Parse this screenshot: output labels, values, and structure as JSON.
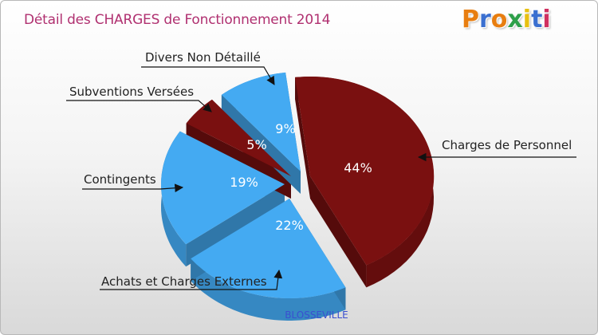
{
  "header": {
    "title": "Détail des CHARGES de Fonctionnement 2014",
    "logo_text": "Proxiti"
  },
  "colors": {
    "blue": "#44aaf2",
    "maroon": "#7a1010",
    "title": "#b03070",
    "subtitle": "#3a4fd0",
    "logo": [
      "#e87e10",
      "#3a6fd0",
      "#e87e10",
      "#2ea04a",
      "#e8c010",
      "#3a6fd0",
      "#d03060"
    ]
  },
  "chart_data": {
    "type": "pie",
    "title": "Détail des CHARGES de Fonctionnement 2014",
    "subtitle": "BLOSSEVILLE",
    "slices": [
      {
        "label": "Charges de Personnel",
        "value": 44,
        "display": "44%",
        "color": "maroon"
      },
      {
        "label": "Achats et Charges Externes",
        "value": 22,
        "display": "22%",
        "color": "blue"
      },
      {
        "label": "Contingents",
        "value": 19,
        "display": "19%",
        "color": "blue"
      },
      {
        "label": "Subventions Versées",
        "value": 5,
        "display": "5%",
        "color": "maroon"
      },
      {
        "label": "Divers Non Détaillé",
        "value": 9,
        "display": "9%",
        "color": "blue"
      }
    ]
  }
}
